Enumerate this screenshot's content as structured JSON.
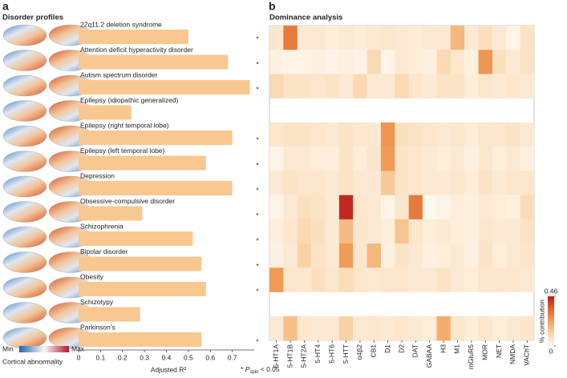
{
  "panel_labels": [
    "a",
    "b"
  ],
  "profiles": {
    "title": "Disorder profiles",
    "min": "Min",
    "max": "Max",
    "label": "Cortical abnormality"
  },
  "note": {
    "symbol": "*",
    "var": "P",
    "sub": "spin",
    "rest": "< 0.05"
  },
  "chart_data": [
    {
      "type": "hbar",
      "categories": [
        "22q11.2 deletion syndrome",
        "Attention deficit hyperactivity disorder",
        "Autism spectrum disorder",
        "Epilepsy (idiopathic generalized)",
        "Epilepsy (right temporal lobe)",
        "Epilepsy (left temporal lobe)",
        "Depression",
        "Obsessive-compulsive disorder",
        "Schizophrenia",
        "Bipolar disorder",
        "Obesity",
        "Schizotypy",
        "Parkinson’s"
      ],
      "values": [
        0.5,
        0.68,
        0.78,
        0.24,
        0.7,
        0.58,
        0.7,
        0.29,
        0.52,
        0.56,
        0.58,
        0.28,
        0.56
      ],
      "markers": [
        "*",
        "*",
        "*",
        null,
        "*",
        "*",
        "*",
        "*",
        "*",
        "*",
        "*",
        null,
        "*"
      ],
      "color": "#f9c790",
      "xlim": [
        0,
        0.8
      ],
      "xticks": [
        0,
        0.1,
        0.2,
        0.3,
        0.4,
        0.5,
        0.6,
        0.7
      ],
      "xlabel": "Adjusted R²"
    },
    {
      "type": "heatmap",
      "title": "Dominance analysis",
      "columns": [
        "5-HT1A",
        "5-HT1B",
        "5-HT2A",
        "5-HT4",
        "5-HT6",
        "5-HTT",
        "α4β2",
        "CB1",
        "D1",
        "D2",
        "DAT",
        "GABAA",
        "H3",
        "M1",
        "mGluR5",
        "MOR",
        "NET",
        "NMDA",
        "VAChT"
      ],
      "values": [
        [
          0.06,
          0.3,
          0.05,
          0.05,
          0.04,
          0.05,
          0.04,
          0.05,
          0.06,
          0.05,
          0.04,
          0.05,
          0.05,
          0.18,
          0.05,
          0.08,
          0.05,
          0.02,
          0.07
        ],
        [
          0.03,
          0.02,
          0.02,
          0.03,
          0.02,
          0.03,
          0.02,
          0.1,
          0.02,
          0.05,
          0.04,
          0.03,
          0.1,
          0.06,
          0.03,
          0.25,
          0.08,
          0.05,
          0.07
        ],
        [
          0.1,
          0.07,
          0.07,
          0.06,
          0.07,
          0.05,
          0.1,
          0.05,
          0.05,
          0.1,
          0.06,
          0.05,
          0.07,
          0.07,
          0.04,
          0.06,
          0.05,
          0.06,
          0.05
        ],
        [
          null,
          null,
          null,
          null,
          null,
          null,
          null,
          null,
          null,
          null,
          null,
          null,
          null,
          null,
          null,
          null,
          null,
          null,
          null
        ],
        [
          0.06,
          0.07,
          0.07,
          0.06,
          0.05,
          0.07,
          0.06,
          0.05,
          0.25,
          0.08,
          0.07,
          0.06,
          0.05,
          0.06,
          0.04,
          0.06,
          0.06,
          0.07,
          0.05
        ],
        [
          0.02,
          0.05,
          0.05,
          0.04,
          0.04,
          0.07,
          0.04,
          0.06,
          0.24,
          0.07,
          0.06,
          0.05,
          0.04,
          0.05,
          0.03,
          0.06,
          0.04,
          0.05,
          0.03
        ],
        [
          0.05,
          0.07,
          0.06,
          0.06,
          0.05,
          0.07,
          0.05,
          0.05,
          0.14,
          0.07,
          0.06,
          0.05,
          0.05,
          0.06,
          0.04,
          0.07,
          0.05,
          0.06,
          0.06
        ],
        [
          0.02,
          0.05,
          0.08,
          0.07,
          0.05,
          0.44,
          0.06,
          0.05,
          0.02,
          0.06,
          0.3,
          0.01,
          0.02,
          0.04,
          0.03,
          0.05,
          0.04,
          0.03,
          0.09
        ],
        [
          0.04,
          0.06,
          0.1,
          0.08,
          0.05,
          0.17,
          0.06,
          0.05,
          0.04,
          0.15,
          0.06,
          0.04,
          0.05,
          0.04,
          0.03,
          0.06,
          0.05,
          0.05,
          0.07
        ],
        [
          0.03,
          0.05,
          0.12,
          0.07,
          0.05,
          0.24,
          0.06,
          0.18,
          0.03,
          0.07,
          0.05,
          0.03,
          0.04,
          0.05,
          0.03,
          0.07,
          0.04,
          0.05,
          0.06
        ],
        [
          0.24,
          0.06,
          0.06,
          0.08,
          0.06,
          0.09,
          0.06,
          0.05,
          0.06,
          0.06,
          0.05,
          0.05,
          0.07,
          0.05,
          0.04,
          0.06,
          0.06,
          0.06,
          0.05
        ],
        [
          null,
          null,
          null,
          null,
          null,
          null,
          null,
          null,
          null,
          null,
          null,
          null,
          null,
          null,
          null,
          null,
          null,
          null,
          null
        ],
        [
          0.05,
          0.16,
          0.06,
          0.05,
          0.05,
          0.12,
          0.05,
          0.06,
          0.05,
          0.06,
          0.05,
          0.04,
          0.2,
          0.06,
          0.04,
          0.06,
          0.04,
          0.05,
          0.06
        ]
      ],
      "zlim": [
        0,
        0.46
      ],
      "zticks": [
        0,
        0.46
      ],
      "zlabel": "% contribution",
      "colormap": [
        "#fffaf3",
        "#f9d4a9",
        "#f1a05a",
        "#e0642a",
        "#b81c1e"
      ]
    }
  ]
}
